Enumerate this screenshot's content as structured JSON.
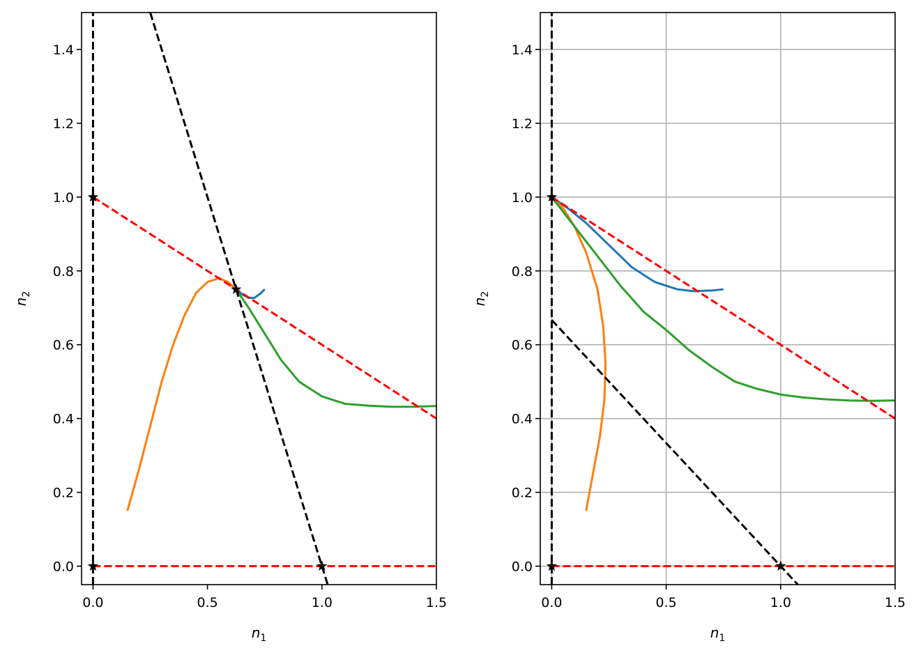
{
  "chart_data": [
    {
      "type": "line",
      "panel": "left",
      "xlabel": "n",
      "xlabel_sub": "1",
      "ylabel": "n",
      "ylabel_sub": "2",
      "xlim": [
        -0.05,
        1.5
      ],
      "ylim": [
        -0.05,
        1.5
      ],
      "xticks": [
        0.0,
        0.5,
        1.0,
        1.5
      ],
      "xtick_labels": [
        "0.0",
        "0.5",
        "1.0",
        "1.5"
      ],
      "yticks": [
        0.0,
        0.2,
        0.4,
        0.6,
        0.8,
        1.0,
        1.2,
        1.4
      ],
      "ytick_labels": [
        "0.0",
        "0.2",
        "0.4",
        "0.6",
        "0.8",
        "1.0",
        "1.2",
        "1.4"
      ],
      "grid": false,
      "nullclines": [
        {
          "color": "#000000",
          "points": [
            [
              0,
              -0.05
            ],
            [
              0,
              1.5
            ]
          ]
        },
        {
          "color": "#000000",
          "points": [
            [
              0.25,
              1.5
            ],
            [
              1.025,
              -0.05
            ]
          ]
        },
        {
          "color": "#ff0000",
          "points": [
            [
              0,
              0
            ],
            [
              1.5,
              0
            ]
          ]
        },
        {
          "color": "#ff0000",
          "points": [
            [
              0,
              1.0
            ],
            [
              1.5,
              0.4
            ]
          ]
        }
      ],
      "fixed_points": [
        [
          0,
          0
        ],
        [
          0,
          1.0
        ],
        [
          1.0,
          0
        ],
        [
          0.625,
          0.75
        ]
      ],
      "trajectories": [
        {
          "color": "#1f77b4",
          "points": [
            [
              0.75,
              0.75
            ],
            [
              0.73,
              0.738
            ],
            [
              0.705,
              0.727
            ],
            [
              0.68,
              0.727
            ],
            [
              0.655,
              0.735
            ],
            [
              0.625,
              0.75
            ]
          ]
        },
        {
          "color": "#ff7f0e",
          "points": [
            [
              0.15,
              0.15
            ],
            [
              0.2,
              0.26
            ],
            [
              0.25,
              0.38
            ],
            [
              0.3,
              0.5
            ],
            [
              0.35,
              0.6
            ],
            [
              0.4,
              0.68
            ],
            [
              0.45,
              0.74
            ],
            [
              0.5,
              0.77
            ],
            [
              0.55,
              0.78
            ],
            [
              0.59,
              0.77
            ],
            [
              0.625,
              0.75
            ]
          ]
        },
        {
          "color": "#2ca02c",
          "points": [
            [
              0.625,
              0.75
            ],
            [
              0.68,
              0.7
            ],
            [
              0.75,
              0.63
            ],
            [
              0.82,
              0.56
            ],
            [
              0.9,
              0.5
            ],
            [
              1.0,
              0.46
            ],
            [
              1.1,
              0.44
            ],
            [
              1.2,
              0.435
            ],
            [
              1.3,
              0.432
            ],
            [
              1.4,
              0.432
            ],
            [
              1.5,
              0.434
            ]
          ]
        }
      ]
    },
    {
      "type": "line",
      "panel": "right",
      "xlabel": "n",
      "xlabel_sub": "1",
      "ylabel": "n",
      "ylabel_sub": "2",
      "xlim": [
        -0.05,
        1.5
      ],
      "ylim": [
        -0.05,
        1.5
      ],
      "xticks": [
        0.0,
        0.5,
        1.0,
        1.5
      ],
      "xtick_labels": [
        "0.0",
        "0.5",
        "1.0",
        "1.5"
      ],
      "yticks": [
        0.0,
        0.2,
        0.4,
        0.6,
        0.8,
        1.0,
        1.2,
        1.4
      ],
      "ytick_labels": [
        "0.0",
        "0.2",
        "0.4",
        "0.6",
        "0.8",
        "1.0",
        "1.2",
        "1.4"
      ],
      "grid": true,
      "nullclines": [
        {
          "color": "#000000",
          "points": [
            [
              0,
              -0.05
            ],
            [
              0,
              1.5
            ]
          ]
        },
        {
          "color": "#000000",
          "points": [
            [
              0,
              0.667
            ],
            [
              1.075,
              -0.05
            ]
          ]
        },
        {
          "color": "#ff0000",
          "points": [
            [
              0,
              0
            ],
            [
              1.5,
              0
            ]
          ]
        },
        {
          "color": "#ff0000",
          "points": [
            [
              0,
              1.0
            ],
            [
              1.5,
              0.4
            ]
          ]
        }
      ],
      "fixed_points": [
        [
          0,
          0
        ],
        [
          0,
          1.0
        ],
        [
          1.0,
          0
        ]
      ],
      "trajectories": [
        {
          "color": "#1f77b4",
          "points": [
            [
              0.75,
              0.75
            ],
            [
              0.7,
              0.747
            ],
            [
              0.62,
              0.745
            ],
            [
              0.55,
              0.75
            ],
            [
              0.45,
              0.77
            ],
            [
              0.35,
              0.81
            ],
            [
              0.25,
              0.87
            ],
            [
              0.15,
              0.93
            ],
            [
              0.07,
              0.97
            ],
            [
              0,
              1.0
            ]
          ]
        },
        {
          "color": "#ff7f0e",
          "points": [
            [
              0.15,
              0.15
            ],
            [
              0.18,
              0.25
            ],
            [
              0.21,
              0.35
            ],
            [
              0.23,
              0.45
            ],
            [
              0.235,
              0.55
            ],
            [
              0.225,
              0.65
            ],
            [
              0.2,
              0.75
            ],
            [
              0.15,
              0.85
            ],
            [
              0.1,
              0.92
            ],
            [
              0.05,
              0.97
            ],
            [
              0,
              1.0
            ]
          ]
        },
        {
          "color": "#2ca02c",
          "points": [
            [
              0,
              1.0
            ],
            [
              0.1,
              0.92
            ],
            [
              0.2,
              0.84
            ],
            [
              0.3,
              0.76
            ],
            [
              0.4,
              0.69
            ],
            [
              0.5,
              0.64
            ],
            [
              0.6,
              0.585
            ],
            [
              0.7,
              0.54
            ],
            [
              0.8,
              0.5
            ],
            [
              0.9,
              0.48
            ],
            [
              1.0,
              0.465
            ],
            [
              1.1,
              0.457
            ],
            [
              1.2,
              0.452
            ],
            [
              1.3,
              0.449
            ],
            [
              1.4,
              0.448
            ],
            [
              1.5,
              0.449
            ]
          ]
        }
      ]
    }
  ]
}
